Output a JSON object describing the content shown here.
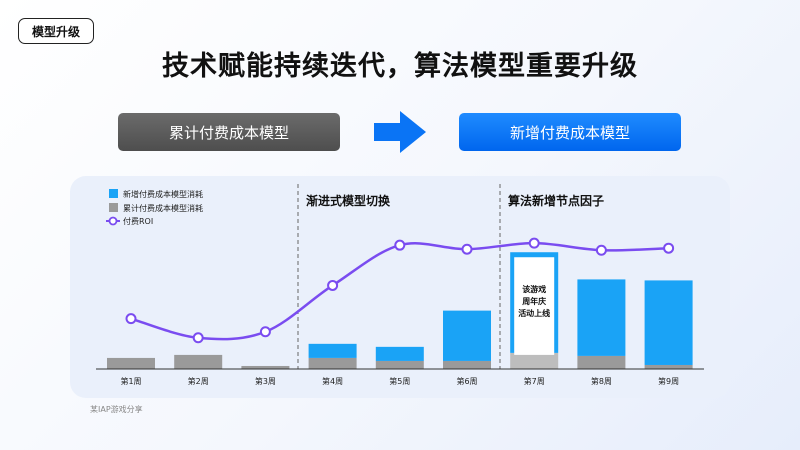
{
  "tag": "模型升级",
  "title": "技术赋能持续迭代，算法模型重要升级",
  "old_model_label": "累计付费成本模型",
  "new_model_label": "新增付费成本模型",
  "footnote": "某IAP游戏分享",
  "colors": {
    "new_cost": "#1aa3f6",
    "cumulative_cost": "#9a9a9a",
    "roi": "#7a4cf0",
    "accent_blue": "#0a74f5"
  },
  "chart_data": {
    "type": "bar",
    "categories": [
      "第1周",
      "第2周",
      "第3周",
      "第4周",
      "第5周",
      "第6周",
      "第7周",
      "第8周",
      "第9周"
    ],
    "series": [
      {
        "name": "新增付费成本模型消耗",
        "kind": "bar-stack",
        "values": [
          0,
          0,
          0,
          14,
          14,
          50,
          100,
          76,
          84
        ]
      },
      {
        "name": "累计付费成本模型消耗",
        "kind": "bar-stack",
        "values": [
          11,
          14,
          3,
          11,
          8,
          8,
          16,
          13,
          4
        ]
      },
      {
        "name": "付费ROI",
        "kind": "line",
        "values": [
          50,
          31,
          37,
          83,
          123,
          119,
          125,
          118,
          120
        ]
      }
    ],
    "ylim": [
      0,
      150
    ],
    "legend": "top-left",
    "annotations": {
      "phase_2": "渐进式模型切换",
      "phase_3": "算法新增节点因子",
      "callout": [
        "该游戏",
        "周年庆",
        "活动上线"
      ]
    }
  }
}
